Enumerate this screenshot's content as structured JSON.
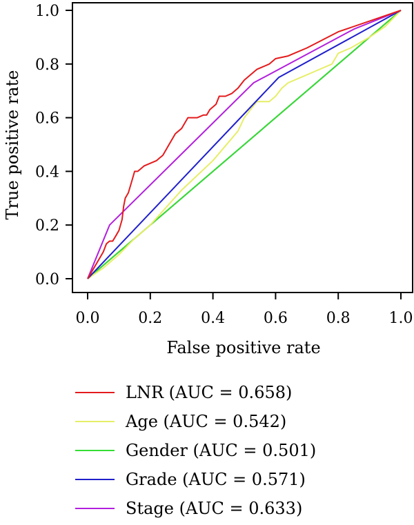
{
  "chart_data": {
    "type": "line",
    "xlabel": "False positive rate",
    "ylabel": "True positive rate",
    "xlim": [
      0,
      1
    ],
    "ylim": [
      0,
      1
    ],
    "xticks": [
      "0.0",
      "0.2",
      "0.4",
      "0.6",
      "0.8",
      "1.0"
    ],
    "yticks": [
      "0.0",
      "0.2",
      "0.4",
      "0.6",
      "0.8",
      "1.0"
    ],
    "grid": false,
    "legend_position": "bottom",
    "reference_line": {
      "x": [
        0,
        1
      ],
      "y": [
        0,
        1
      ],
      "color": "#000000"
    },
    "series": [
      {
        "name": "LNR (AUC = 0.658)",
        "color": "#e41a1c",
        "x": [
          0,
          0.03,
          0.05,
          0.06,
          0.07,
          0.08,
          0.09,
          0.1,
          0.11,
          0.115,
          0.12,
          0.13,
          0.14,
          0.15,
          0.16,
          0.17,
          0.18,
          0.2,
          0.22,
          0.23,
          0.24,
          0.26,
          0.28,
          0.3,
          0.32,
          0.33,
          0.35,
          0.37,
          0.38,
          0.39,
          0.4,
          0.41,
          0.42,
          0.44,
          0.46,
          0.48,
          0.5,
          0.52,
          0.54,
          0.56,
          0.58,
          0.6,
          0.64,
          0.66,
          0.7,
          0.8,
          1.0
        ],
        "y": [
          0,
          0.06,
          0.1,
          0.13,
          0.14,
          0.14,
          0.16,
          0.18,
          0.22,
          0.27,
          0.3,
          0.32,
          0.36,
          0.4,
          0.4,
          0.41,
          0.42,
          0.43,
          0.44,
          0.45,
          0.46,
          0.5,
          0.54,
          0.56,
          0.6,
          0.6,
          0.6,
          0.61,
          0.61,
          0.63,
          0.64,
          0.65,
          0.68,
          0.68,
          0.69,
          0.71,
          0.74,
          0.76,
          0.78,
          0.79,
          0.8,
          0.82,
          0.83,
          0.84,
          0.86,
          0.92,
          1.0
        ]
      },
      {
        "name": "Age (AUC = 0.542)",
        "color": "#e6ee66",
        "x": [
          0,
          0.05,
          0.1,
          0.15,
          0.2,
          0.3,
          0.4,
          0.48,
          0.5,
          0.52,
          0.54,
          0.58,
          0.6,
          0.62,
          0.64,
          0.68,
          0.72,
          0.78,
          0.8,
          0.84,
          0.9,
          0.95,
          1.0
        ],
        "y": [
          0,
          0.04,
          0.09,
          0.15,
          0.2,
          0.33,
          0.44,
          0.55,
          0.6,
          0.63,
          0.66,
          0.66,
          0.68,
          0.71,
          0.73,
          0.75,
          0.77,
          0.8,
          0.84,
          0.86,
          0.9,
          0.94,
          1.0
        ]
      },
      {
        "name": "Gender (AUC = 0.501)",
        "color": "#33dd33",
        "x": [
          0,
          0.5,
          1.0
        ],
        "y": [
          0,
          0.5,
          1.0
        ]
      },
      {
        "name": "Grade (AUC = 0.571)",
        "color": "#1f1fcc",
        "x": [
          0,
          0.61,
          1.0
        ],
        "y": [
          0,
          0.75,
          1.0
        ]
      },
      {
        "name": "Stage (AUC = 0.633)",
        "color": "#b21fdc",
        "x": [
          0,
          0.07,
          0.53,
          0.85,
          1.0
        ],
        "y": [
          0,
          0.2,
          0.73,
          0.93,
          1.0
        ]
      }
    ]
  }
}
